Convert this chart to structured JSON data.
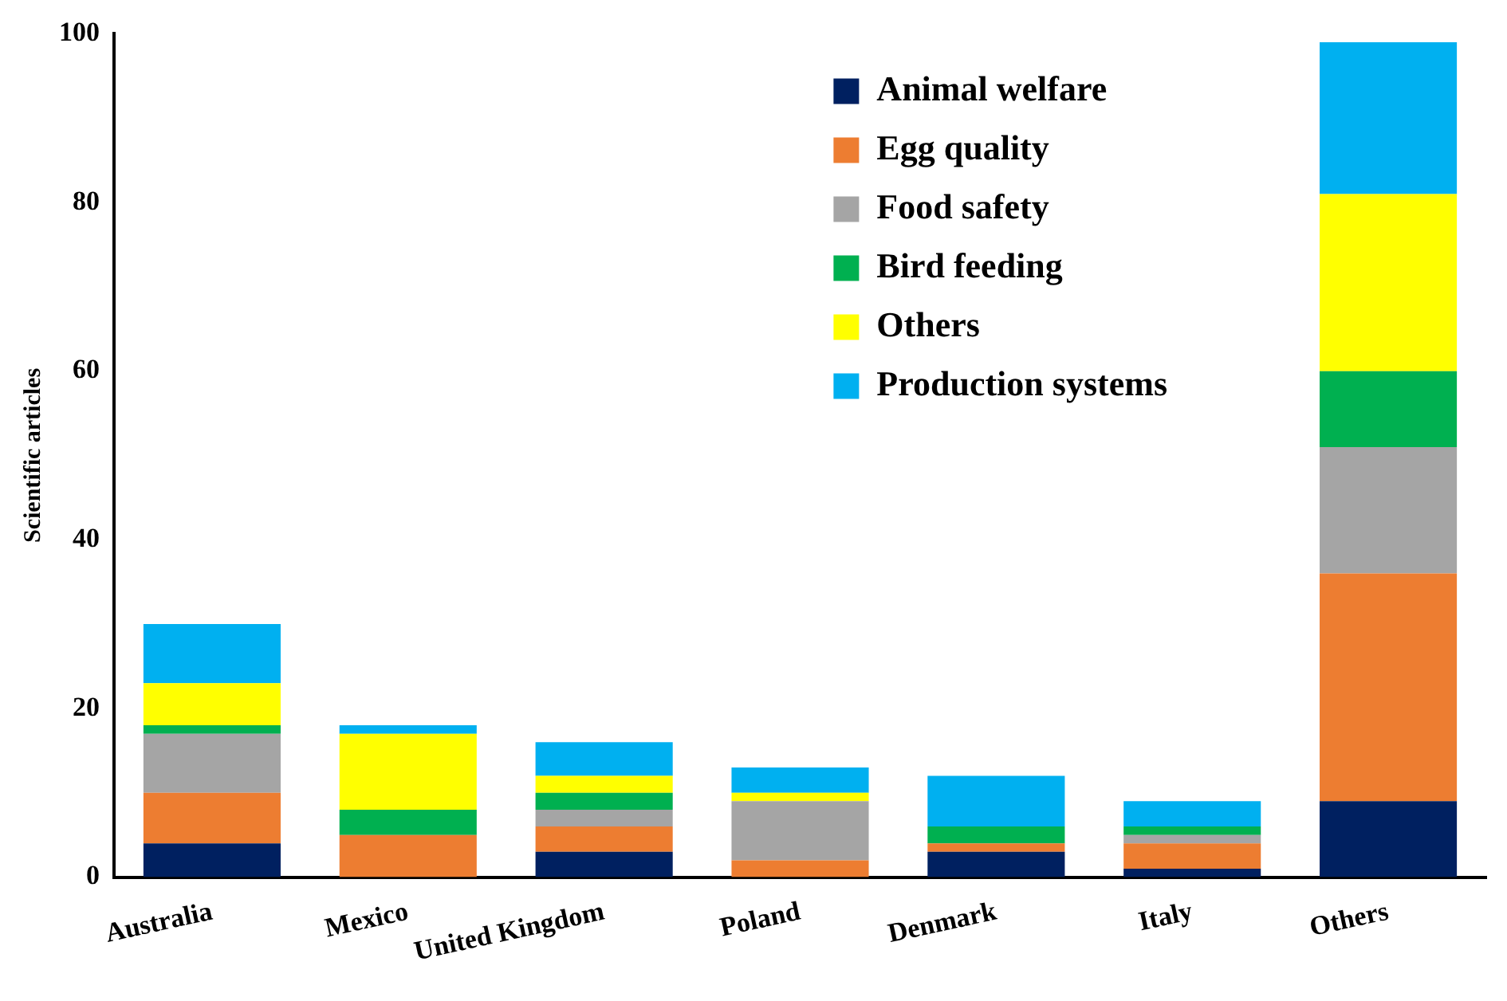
{
  "chart_data": {
    "type": "bar",
    "stacked": true,
    "ylabel": "Scientific articles",
    "categories": [
      "Australia",
      "Mexico",
      "United Kingdom",
      "Poland",
      "Denmark",
      "Italy",
      "Others"
    ],
    "series": [
      {
        "name": "Animal welfare",
        "color": "#002060",
        "values": [
          4,
          0,
          3,
          0,
          3,
          1,
          9
        ]
      },
      {
        "name": "Egg quality",
        "color": "#ed7d31",
        "values": [
          6,
          5,
          3,
          2,
          1,
          3,
          27
        ]
      },
      {
        "name": "Food safety",
        "color": "#a5a5a5",
        "values": [
          7,
          0,
          2,
          7,
          0,
          1,
          15
        ]
      },
      {
        "name": "Bird feeding",
        "color": "#00b050",
        "values": [
          1,
          3,
          2,
          0,
          2,
          1,
          9
        ]
      },
      {
        "name": "Others",
        "color": "#ffff00",
        "values": [
          5,
          9,
          2,
          1,
          0,
          0,
          21
        ]
      },
      {
        "name": "Production systems",
        "color": "#00b0f0",
        "values": [
          7,
          1,
          4,
          3,
          6,
          3,
          18
        ]
      }
    ],
    "ylim": [
      0,
      100
    ],
    "yticks": [
      0,
      20,
      40,
      60,
      80,
      100
    ],
    "grid": false,
    "legend": "top right"
  }
}
